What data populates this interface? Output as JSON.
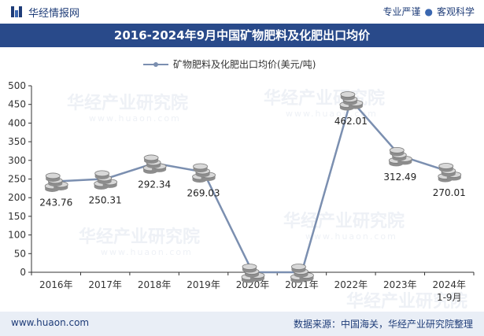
{
  "header": {
    "logo_text": "华经情报网",
    "slogan_left": "专业严谨",
    "slogan_sep": "●",
    "slogan_right": "客观科学"
  },
  "watermark": {
    "text_cn": "华经产业研究院",
    "text_url": "www.huaon.com"
  },
  "footer": {
    "site": "www.huaon.com",
    "source": "数据来源：中国海关，华经产业研究院整理"
  },
  "colors": {
    "title_bg": "#294a8a",
    "line": "#7b8fb0",
    "brand": "#1e3c78"
  },
  "chart_data": {
    "type": "line",
    "title": "2016-2024年9月中国矿物肥料及化肥出口均价",
    "categories": [
      "2016年",
      "2017年",
      "2018年",
      "2019年",
      "2020年",
      "2021年",
      "2022年",
      "2023年",
      "2024年1-9月"
    ],
    "series": [
      {
        "name": "矿物肥料及化肥出口均价(美元/吨)",
        "values": [
          243.76,
          250.31,
          292.34,
          269.03,
          0,
          0,
          462.01,
          312.49,
          270.01
        ],
        "labels": [
          "243.76",
          "250.31",
          "292.34",
          "269.03",
          "",
          "",
          "462.01",
          "312.49",
          "270.01"
        ]
      }
    ],
    "y_ticks": [
      "0",
      "50",
      "100",
      "150",
      "200",
      "250",
      "300",
      "350",
      "400",
      "450",
      "500"
    ],
    "ylim": [
      0,
      500
    ],
    "grid": false,
    "legend_position": "top-center"
  }
}
